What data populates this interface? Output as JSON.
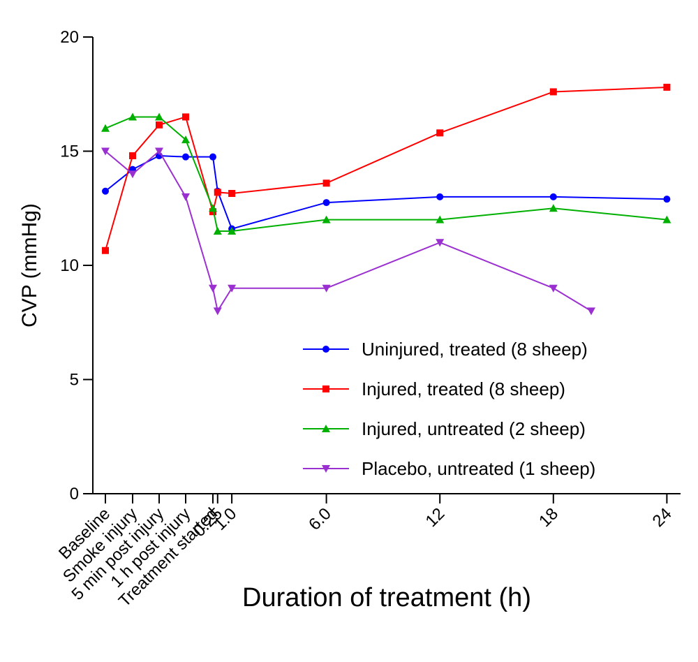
{
  "chart_data": {
    "type": "line",
    "title": "",
    "xlabel": "Duration of treatment (h)",
    "ylabel": "CVP (mmHg)",
    "ylim": [
      0,
      20
    ],
    "yticks": [
      "0",
      "5",
      "10",
      "15",
      "20"
    ],
    "categories": [
      "Baseline",
      "Smoke injury",
      "5 min post injury",
      "1 h post injury",
      "Treatment started",
      "0.25",
      "1.0",
      "6.0",
      "12",
      "18",
      "24"
    ],
    "x_hours": [
      null,
      null,
      null,
      null,
      0,
      0.25,
      1.0,
      6.0,
      12,
      18,
      24
    ],
    "grid": false,
    "legend_position": "lower-right",
    "series": [
      {
        "name": "Uninjured, treated (8 sheep)",
        "color": "#0000ff",
        "marker": "circle",
        "points": [
          {
            "cat": "Baseline",
            "y": 13.25
          },
          {
            "cat": "Smoke injury",
            "y": 14.2
          },
          {
            "cat": "5 min post injury",
            "y": 14.8
          },
          {
            "cat": "1 h post injury",
            "y": 14.75
          },
          {
            "cat": "Treatment started",
            "y": 14.75
          },
          {
            "cat": "0.25",
            "y": 13.25
          },
          {
            "cat": "1.0",
            "y": 11.6
          },
          {
            "cat": "6.0",
            "y": 12.75
          },
          {
            "cat": "12",
            "y": 13.0
          },
          {
            "cat": "18",
            "y": 13.0
          },
          {
            "cat": "24",
            "y": 12.9
          }
        ]
      },
      {
        "name": "Injured, treated (8 sheep)",
        "color": "#ff0000",
        "marker": "square",
        "points": [
          {
            "cat": "Baseline",
            "y": 10.65
          },
          {
            "cat": "Smoke injury",
            "y": 14.8
          },
          {
            "cat": "5 min post injury",
            "y": 16.15
          },
          {
            "cat": "1 h post injury",
            "y": 16.5
          },
          {
            "cat": "Treatment started",
            "y": 12.35
          },
          {
            "cat": "0.25",
            "y": 13.2
          },
          {
            "cat": "1.0",
            "y": 13.15
          },
          {
            "cat": "6.0",
            "y": 13.6
          },
          {
            "cat": "12",
            "y": 15.8
          },
          {
            "cat": "18",
            "y": 17.6
          },
          {
            "cat": "24",
            "y": 17.8
          }
        ]
      },
      {
        "name": "Injured, untreated (2 sheep)",
        "color": "#00b000",
        "marker": "triangle-up",
        "points": [
          {
            "cat": "Baseline",
            "y": 16.0
          },
          {
            "cat": "Smoke injury",
            "y": 16.5
          },
          {
            "cat": "5 min post injury",
            "y": 16.5
          },
          {
            "cat": "1 h post injury",
            "y": 15.5
          },
          {
            "cat": "Treatment started",
            "y": 12.5
          },
          {
            "cat": "0.25",
            "y": 11.5
          },
          {
            "cat": "1.0",
            "y": 11.5
          },
          {
            "cat": "6.0",
            "y": 12.0
          },
          {
            "cat": "12",
            "y": 12.0
          },
          {
            "cat": "18",
            "y": 12.5
          },
          {
            "cat": "24",
            "y": 12.0
          }
        ]
      },
      {
        "name": "Placebo, untreated (1 sheep)",
        "color": "#9b30d0",
        "marker": "triangle-down",
        "points": [
          {
            "cat": "Baseline",
            "y": 15.0
          },
          {
            "cat": "Smoke injury",
            "y": 14.0
          },
          {
            "cat": "5 min post injury",
            "y": 15.0
          },
          {
            "cat": "1 h post injury",
            "y": 13.0
          },
          {
            "cat": "Treatment started",
            "y": 9.0
          },
          {
            "cat": "0.25",
            "y": 8.0
          },
          {
            "cat": "1.0",
            "y": 9.0
          },
          {
            "cat": "6.0",
            "y": 9.0
          },
          {
            "cat": "12",
            "y": 11.0
          },
          {
            "cat": "18",
            "y": 9.0
          },
          {
            "cat": "20",
            "y": 8.0
          }
        ]
      }
    ]
  }
}
